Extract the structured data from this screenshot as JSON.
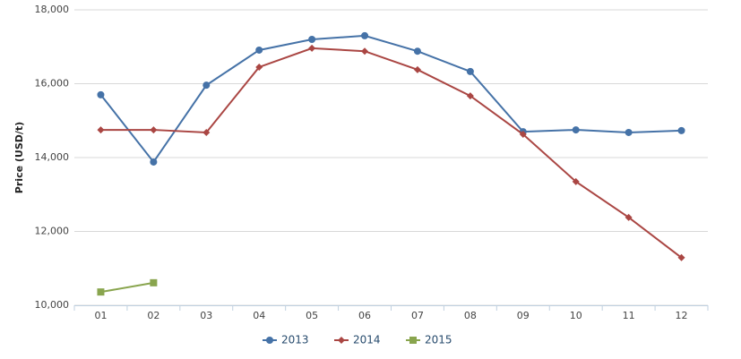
{
  "chart_data": {
    "type": "line",
    "y_label": "Price (USD/t)",
    "categories": [
      "01",
      "02",
      "03",
      "04",
      "05",
      "06",
      "07",
      "08",
      "09",
      "10",
      "11",
      "12"
    ],
    "series": [
      {
        "name": "2013",
        "color": "#4572a7",
        "marker": "circle",
        "values": [
          15700,
          13880,
          15960,
          16910,
          17200,
          17300,
          16880,
          16330,
          14700,
          14750,
          14680,
          14730
        ]
      },
      {
        "name": "2014",
        "color": "#aa4643",
        "marker": "diamond",
        "values": [
          14750,
          14750,
          14680,
          16450,
          16960,
          16880,
          16380,
          15670,
          14630,
          13350,
          12380,
          11290
        ]
      },
      {
        "name": "2015",
        "color": "#89a54e",
        "marker": "square",
        "values": [
          10360,
          10610,
          null,
          null,
          null,
          null,
          null,
          null,
          null,
          null,
          null,
          null
        ]
      }
    ],
    "ylim": [
      10000,
      18000
    ],
    "yticks": [
      {
        "value": 10000,
        "label": "10,000"
      },
      {
        "value": 12000,
        "label": "12,000"
      },
      {
        "value": 14000,
        "label": "14,000"
      },
      {
        "value": 16000,
        "label": "16,000"
      },
      {
        "value": 18000,
        "label": "18,000"
      }
    ],
    "grid": true,
    "legend": "bottom"
  }
}
